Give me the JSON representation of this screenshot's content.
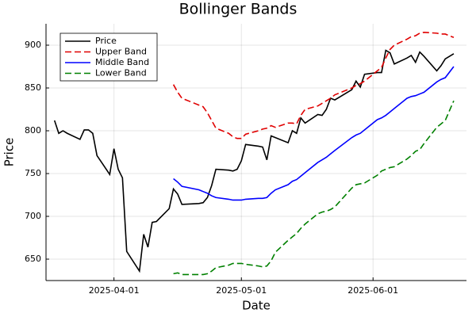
{
  "chart_data": {
    "type": "line",
    "title": "Bollinger Bands",
    "xlabel": "Date",
    "ylabel": "Price",
    "x": [
      "2025-03-18",
      "2025-03-19",
      "2025-03-20",
      "2025-03-21",
      "2025-03-24",
      "2025-03-25",
      "2025-03-26",
      "2025-03-27",
      "2025-03-28",
      "2025-03-31",
      "2025-04-01",
      "2025-04-02",
      "2025-04-03",
      "2025-04-04",
      "2025-04-07",
      "2025-04-08",
      "2025-04-09",
      "2025-04-10",
      "2025-04-11",
      "2025-04-14",
      "2025-04-15",
      "2025-04-16",
      "2025-04-17",
      "2025-04-21",
      "2025-04-22",
      "2025-04-23",
      "2025-04-24",
      "2025-04-25",
      "2025-04-28",
      "2025-04-29",
      "2025-04-30",
      "2025-05-01",
      "2025-05-02",
      "2025-05-05",
      "2025-05-06",
      "2025-05-07",
      "2025-05-08",
      "2025-05-09",
      "2025-05-12",
      "2025-05-13",
      "2025-05-14",
      "2025-05-15",
      "2025-05-16",
      "2025-05-19",
      "2025-05-20",
      "2025-05-21",
      "2025-05-22",
      "2025-05-23",
      "2025-05-27",
      "2025-05-28",
      "2025-05-29",
      "2025-05-30",
      "2025-06-02",
      "2025-06-03",
      "2025-06-04",
      "2025-06-05",
      "2025-06-06",
      "2025-06-09",
      "2025-06-10",
      "2025-06-11",
      "2025-06-12",
      "2025-06-13",
      "2025-06-16",
      "2025-06-17",
      "2025-06-18",
      "2025-06-20"
    ],
    "series": [
      {
        "name": "Price",
        "color": "#000000",
        "style": "solid",
        "values": [
          812,
          797,
          800,
          797,
          790,
          801,
          801,
          797,
          771,
          749,
          779,
          755,
          745,
          659,
          636,
          679,
          664,
          693,
          694,
          709,
          732,
          726,
          714,
          715,
          716,
          722,
          736,
          755,
          754,
          753,
          755,
          765,
          784,
          782,
          781,
          766,
          794,
          792,
          786,
          800,
          797,
          815,
          809,
          819,
          818,
          825,
          838,
          836,
          848,
          858,
          851,
          866,
          868,
          868,
          894,
          891,
          878,
          885,
          888,
          880,
          892,
          887,
          870,
          876,
          884,
          890
        ]
      },
      {
        "name": "Upper Band",
        "color": "#e00000",
        "style": "dashed",
        "values": [
          null,
          null,
          null,
          null,
          null,
          null,
          null,
          null,
          null,
          null,
          null,
          null,
          null,
          null,
          null,
          null,
          null,
          null,
          null,
          null,
          854,
          845,
          838,
          830,
          828,
          821,
          812,
          803,
          797,
          793,
          791,
          791,
          796,
          800,
          802,
          803,
          806,
          804,
          809,
          809,
          808,
          818,
          825,
          829,
          832,
          835,
          838,
          842,
          850,
          853,
          855,
          858,
          870,
          874,
          885,
          895,
          900,
          907,
          910,
          911,
          914,
          915,
          914,
          913,
          913,
          909
        ]
      },
      {
        "name": "Middle Band",
        "color": "#0000ff",
        "style": "solid",
        "values": [
          null,
          null,
          null,
          null,
          null,
          null,
          null,
          null,
          null,
          null,
          null,
          null,
          null,
          null,
          null,
          null,
          null,
          null,
          null,
          null,
          744,
          740,
          735,
          731,
          729,
          727,
          724,
          722,
          720,
          719,
          719,
          719,
          720,
          721,
          721,
          722,
          727,
          731,
          737,
          741,
          743,
          747,
          751,
          763,
          766,
          769,
          773,
          777,
          792,
          795,
          797,
          801,
          813,
          815,
          818,
          822,
          826,
          838,
          840,
          841,
          843,
          845,
          857,
          860,
          862,
          875
        ]
      },
      {
        "name": "Lower Band",
        "color": "#008000",
        "style": "dashed",
        "values": [
          null,
          null,
          null,
          null,
          null,
          null,
          null,
          null,
          null,
          null,
          null,
          null,
          null,
          null,
          null,
          null,
          null,
          null,
          null,
          null,
          633,
          634,
          632,
          632,
          632,
          633,
          636,
          640,
          643,
          645,
          645,
          645,
          644,
          642,
          641,
          642,
          648,
          658,
          672,
          676,
          680,
          686,
          691,
          703,
          705,
          706,
          708,
          711,
          733,
          737,
          738,
          739,
          748,
          753,
          755,
          757,
          758,
          767,
          771,
          776,
          778,
          785,
          804,
          808,
          812,
          835
        ]
      }
    ],
    "xlim": [
      "2025-03-16",
      "2025-06-23"
    ],
    "xticks": [
      "2025-04-01",
      "2025-05-01",
      "2025-06-01"
    ],
    "ylim": [
      625,
      925
    ],
    "yticks": [
      650,
      700,
      750,
      800,
      850,
      900
    ],
    "grid": true,
    "legend": "top-left"
  }
}
